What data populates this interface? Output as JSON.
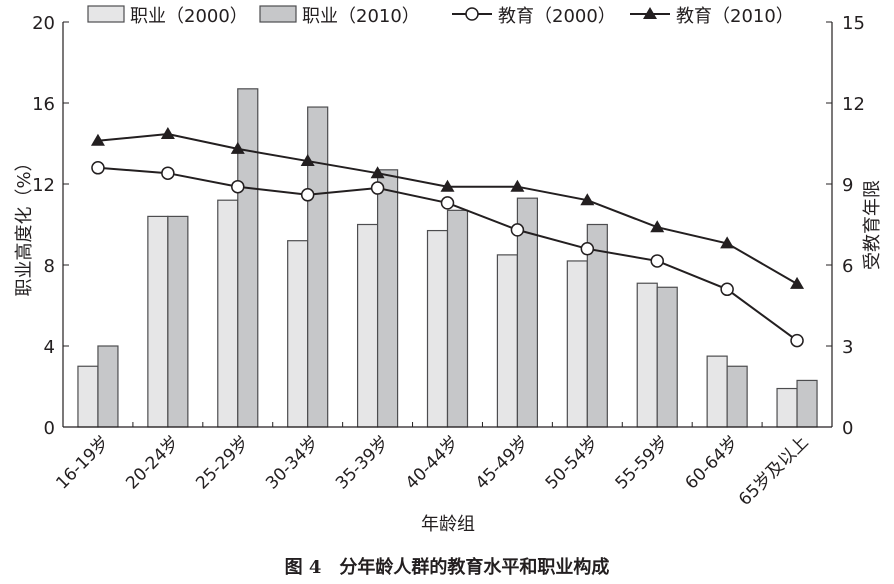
{
  "chart_data": {
    "type": "bar",
    "caption": "图 4　分年龄人群的教育水平和职业构成",
    "xlabel": "年龄组",
    "ylabel": "职业高度化（%）",
    "y2label": "受教育年限",
    "ylim": [
      0,
      20
    ],
    "yticks": [
      0,
      4,
      8,
      12,
      16,
      20
    ],
    "y2lim": [
      0,
      15
    ],
    "y2ticks": [
      0,
      3,
      6,
      9,
      12,
      15
    ],
    "legend_position": "top",
    "categories": [
      "16-19岁",
      "20-24岁",
      "25-29岁",
      "30-34岁",
      "35-39岁",
      "40-44岁",
      "45-49岁",
      "50-54岁",
      "55-59岁",
      "60-64岁",
      "65岁及以上"
    ],
    "series": [
      {
        "name": "职业（2000）",
        "type": "bar",
        "axis": "left",
        "color": "#e6e6e7",
        "values": [
          3.0,
          10.4,
          11.2,
          9.2,
          10.0,
          9.7,
          8.5,
          8.2,
          7.1,
          3.5,
          1.9
        ]
      },
      {
        "name": "职业（2010）",
        "type": "bar",
        "axis": "left",
        "color": "#c6c7c9",
        "values": [
          4.0,
          10.4,
          16.7,
          15.8,
          12.7,
          10.7,
          11.3,
          10.0,
          6.9,
          3.0,
          2.3
        ]
      },
      {
        "name": "教育（2000）",
        "type": "line",
        "axis": "right",
        "marker": "circle",
        "values": [
          9.6,
          9.4,
          8.9,
          8.6,
          8.85,
          8.3,
          7.3,
          6.6,
          6.15,
          5.1,
          3.2
        ]
      },
      {
        "name": "教育（2010）",
        "type": "line",
        "axis": "right",
        "marker": "triangle",
        "values": [
          10.6,
          10.85,
          10.3,
          9.85,
          9.4,
          8.9,
          8.9,
          8.4,
          7.4,
          6.8,
          5.3
        ]
      }
    ]
  }
}
